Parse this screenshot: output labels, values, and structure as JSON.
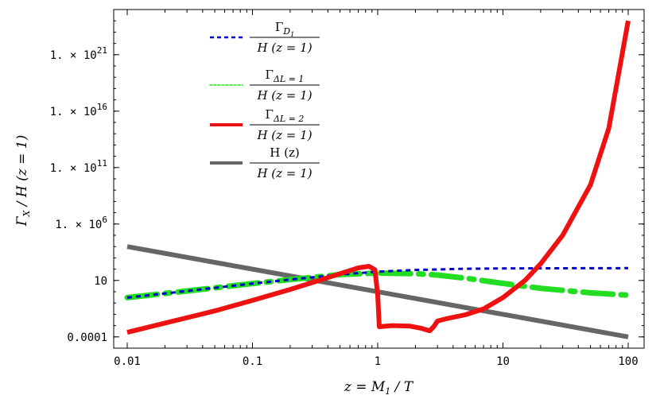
{
  "chart_data": {
    "type": "line",
    "title": "",
    "xlabel": "z = M_1 / T",
    "ylabel": "Γ_X / H(z = 1)",
    "x_scale": "log",
    "y_scale": "log",
    "xlim": [
      0.01,
      100
    ],
    "ylim": [
      1e-05,
      1e+25
    ],
    "x_ticks": [
      {
        "value": 0.01,
        "label": "0.01"
      },
      {
        "value": 0.1,
        "label": "0.1"
      },
      {
        "value": 1,
        "label": "1"
      },
      {
        "value": 10,
        "label": "10"
      },
      {
        "value": 100,
        "label": "100"
      }
    ],
    "y_ticks": [
      {
        "value": 0.0001,
        "mantissa": "0.0001",
        "exp": ""
      },
      {
        "value": 10,
        "mantissa": "10",
        "exp": ""
      },
      {
        "value": 1000000.0,
        "mantissa": "1. × 10",
        "exp": "6"
      },
      {
        "value": 100000000000.0,
        "mantissa": "1. × 10",
        "exp": "11"
      },
      {
        "value": 1e+16,
        "mantissa": "1. × 10",
        "exp": "16"
      },
      {
        "value": 1e+21,
        "mantissa": "1. × 10",
        "exp": "21"
      }
    ],
    "grid": false,
    "legend_position": "top-left",
    "series": [
      {
        "name": "Γ_{D_1} / H(z = 1)",
        "color": "#0000cc",
        "style": "dashed",
        "x": [
          0.01,
          0.02,
          0.05,
          0.1,
          0.2,
          0.5,
          1,
          2,
          5,
          10,
          20,
          50,
          100
        ],
        "y": [
          0.3,
          0.7,
          2.2,
          5.3,
          12,
          34,
          60,
          85,
          108,
          115,
          120,
          122,
          123
        ]
      },
      {
        "name": "Γ_{ΔL=1} / H(z = 1)",
        "color": "#22dd22",
        "style": "dash-dot",
        "x": [
          0.01,
          0.02,
          0.05,
          0.1,
          0.2,
          0.5,
          1,
          2,
          3,
          5,
          10,
          20,
          50,
          100
        ],
        "y": [
          0.3,
          0.7,
          2.2,
          5.3,
          12,
          33,
          45,
          40,
          30,
          16,
          5.5,
          2,
          0.8,
          0.5
        ]
      },
      {
        "name": "Γ_{ΔL=2} / H(z = 1)",
        "color": "#ee1111",
        "style": "solid",
        "x": [
          0.01,
          0.05,
          0.1,
          0.2,
          0.3,
          0.5,
          0.7,
          0.85,
          0.95,
          1.0,
          1.03,
          1.3,
          1.8,
          2.2,
          2.6,
          2.8,
          3.0,
          3.5,
          5,
          7,
          10,
          15,
          20,
          30,
          50,
          70,
          100
        ],
        "y": [
          0.00025,
          0.02,
          0.17,
          1.6,
          6.5,
          40,
          130,
          180,
          90,
          0.5,
          0.0008,
          0.001,
          0.0009,
          0.0006,
          0.00035,
          0.0008,
          0.0025,
          0.004,
          0.009,
          0.03,
          0.3,
          10,
          300,
          100000.0,
          3000000000.0,
          300000000000000.0,
          1e+24
        ]
      },
      {
        "name": "H(z) / H(z = 1)",
        "color": "#666666",
        "style": "solid",
        "x": [
          0.01,
          100
        ],
        "y": [
          10000,
          0.0001
        ]
      }
    ],
    "legend": [
      {
        "num": "Γ",
        "sub": "D",
        "subsub": "1",
        "den": "H (z = 1)"
      },
      {
        "num": "Γ",
        "sub": "ΔL = 1",
        "subsub": "",
        "den": "H (z = 1)"
      },
      {
        "num": "Γ",
        "sub": "ΔL = 2",
        "subsub": "",
        "den": "H (z = 1)"
      },
      {
        "num": "H (z)",
        "sub": "",
        "subsub": "",
        "den": "H (z = 1)"
      }
    ]
  }
}
